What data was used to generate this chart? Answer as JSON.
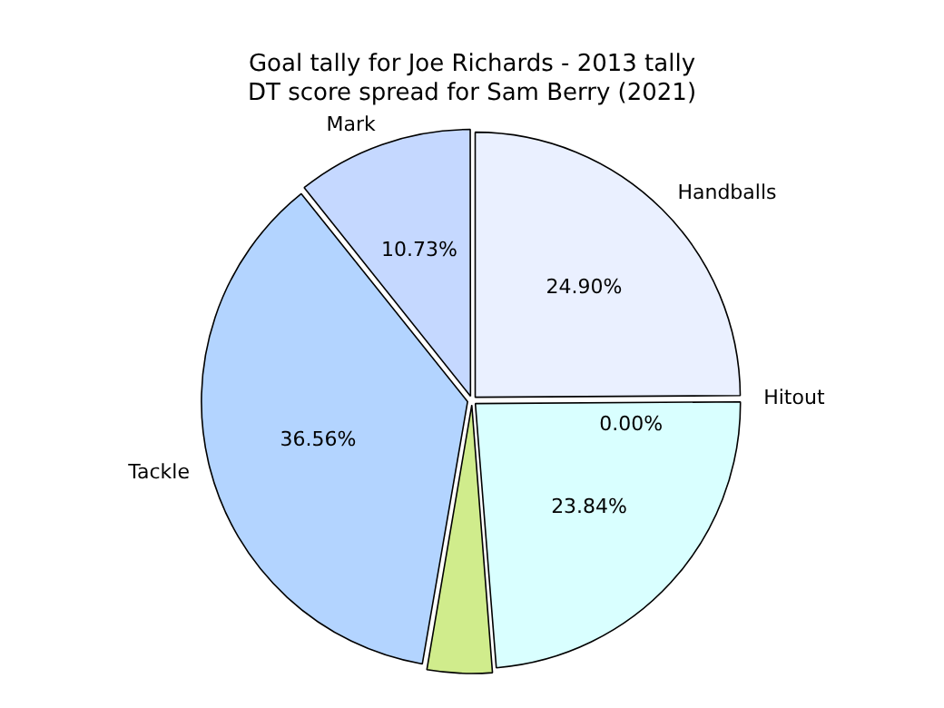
{
  "chart_data": {
    "type": "pie",
    "title": "Goal tally for Joe Richards - 2013 tally\nDT score spread for Sam Berry (2021)",
    "categories": [
      "Handballs",
      "Hitout",
      null,
      null,
      "Tackle",
      "Mark"
    ],
    "values": [
      24.9,
      0.0,
      23.84,
      3.97,
      36.56,
      10.73
    ],
    "value_labels": [
      "24.90%",
      "0.00%",
      "23.84%",
      null,
      "36.56%",
      "10.73%"
    ],
    "colors": [
      "#eaf0ff",
      "#e0e6ff",
      "#d9ffff",
      "#d0ec8c",
      "#b3d4ff",
      "#c5d8ff"
    ],
    "legend": false
  }
}
